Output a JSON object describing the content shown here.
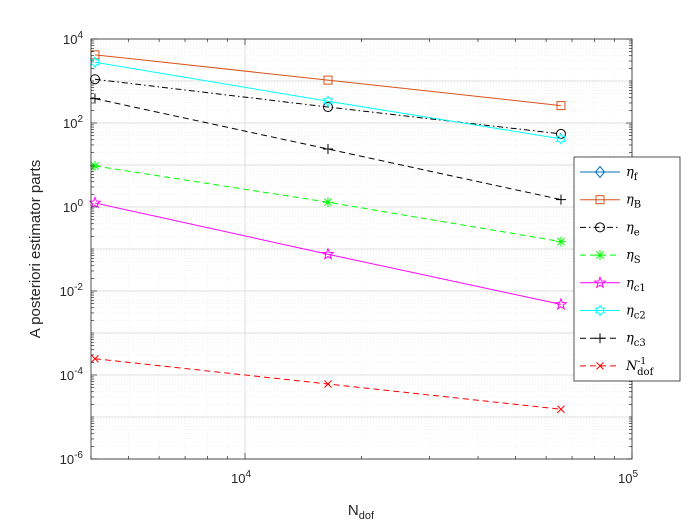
{
  "chart_data": {
    "type": "line",
    "xscale": "log",
    "yscale": "log",
    "xlim": [
      4000,
      100000
    ],
    "ylim": [
      1e-06,
      10000
    ],
    "grid": true,
    "legend_position": "right",
    "xlabel": {
      "base": "N",
      "sub": "dof"
    },
    "ylabel": "A posteriori estimator parts",
    "x": [
      4096,
      16384,
      65536
    ],
    "xticks": [
      {
        "value": 10000,
        "base": "10",
        "exp": "4"
      },
      {
        "value": 100000,
        "base": "10",
        "exp": "5"
      }
    ],
    "yticks": [
      {
        "value": 1e-06,
        "base": "10",
        "exp": "-6"
      },
      {
        "value": 0.0001,
        "base": "10",
        "exp": "-4"
      },
      {
        "value": 0.01,
        "base": "10",
        "exp": "-2"
      },
      {
        "value": 1,
        "base": "10",
        "exp": "0"
      },
      {
        "value": 100,
        "base": "10",
        "exp": "2"
      },
      {
        "value": 10000,
        "base": "10",
        "exp": "4"
      }
    ],
    "series": [
      {
        "name": "η_f",
        "label_base": "η",
        "label_sub": "f",
        "label_sup": "",
        "color": "#0072BD",
        "dash": "solid",
        "marker": "diamond",
        "values": [
          null,
          null,
          null
        ]
      },
      {
        "name": "η_B",
        "label_base": "η",
        "label_sub": "B",
        "label_sup": "",
        "color": "#D95319",
        "dash": "solid",
        "marker": "square",
        "values": [
          4200,
          1050,
          260
        ]
      },
      {
        "name": "η_e",
        "label_base": "η",
        "label_sub": "e",
        "label_sup": "",
        "color": "#000000",
        "dash": "dashdot",
        "marker": "circle",
        "values": [
          1100,
          240,
          55
        ]
      },
      {
        "name": "η_S",
        "label_base": "η",
        "label_sub": "S",
        "label_sup": "",
        "color": "#00FF00",
        "dash": "dashed",
        "marker": "asterisk",
        "values": [
          9.5,
          1.3,
          0.15
        ]
      },
      {
        "name": "η_c1",
        "label_base": "η",
        "label_sub": "c1",
        "label_sup": "",
        "color": "#FF00FF",
        "dash": "solid",
        "marker": "pentagram",
        "values": [
          1.25,
          0.075,
          0.0048
        ]
      },
      {
        "name": "η_c2",
        "label_base": "η",
        "label_sub": "c2",
        "label_sup": "",
        "color": "#00FFFF",
        "dash": "solid",
        "marker": "hexagram",
        "values": [
          2800,
          330,
          42
        ]
      },
      {
        "name": "η_c3",
        "label_base": "η",
        "label_sub": "c3",
        "label_sup": "",
        "color": "#000000",
        "dash": "dashed",
        "marker": "plus",
        "values": [
          380,
          24,
          1.5
        ]
      },
      {
        "name": "N_dof^-1",
        "label_base": "N",
        "label_sub": "dof",
        "label_sup": "-1",
        "color": "#FF0000",
        "dash": "dashed",
        "marker": "x",
        "values": [
          0.000244,
          6.1e-05,
          1.53e-05
        ]
      }
    ]
  }
}
